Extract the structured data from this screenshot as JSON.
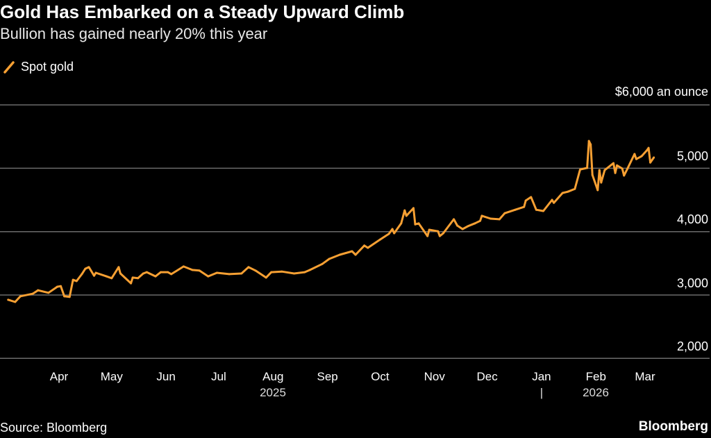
{
  "title": "Gold Has Embarked on a Steady Upward Climb",
  "subtitle": "Bullion has gained nearly 20% this year",
  "source": "Source: Bloomberg",
  "brand": "Bloomberg",
  "colors": {
    "series": "#f7a033",
    "grid": "#6b6b6b",
    "background": "#000000"
  },
  "chart_data": {
    "type": "line",
    "title": "Gold Has Embarked on a Steady Upward Climb",
    "subtitle": "Bullion has gained nearly 20% this year",
    "legend": "top-left",
    "grid": true,
    "y_unit_label": "$6,000 an ounce",
    "ylim": [
      2000,
      6000
    ],
    "y_ticks": [
      "$6,000 an ounce",
      "5,000",
      "4,000",
      "3,000",
      "2,000"
    ],
    "x_ticks": [
      "Apr",
      "May",
      "Jun",
      "Jul",
      "Aug",
      "Sep",
      "Oct",
      "Nov",
      "Dec",
      "Jan",
      "Feb",
      "Mar"
    ],
    "x_year_labels": [
      "2025",
      "2026"
    ],
    "year_divider": "|",
    "series": [
      {
        "name": "Spot gold",
        "points": [
          [
            "2025-03-03",
            2925
          ],
          [
            "2025-03-07",
            2890
          ],
          [
            "2025-03-10",
            2980
          ],
          [
            "2025-03-17",
            3020
          ],
          [
            "2025-03-20",
            3075
          ],
          [
            "2025-03-26",
            3035
          ],
          [
            "2025-03-31",
            3130
          ],
          [
            "2025-04-02",
            3140
          ],
          [
            "2025-04-04",
            2980
          ],
          [
            "2025-04-07",
            2970
          ],
          [
            "2025-04-09",
            3240
          ],
          [
            "2025-04-11",
            3220
          ],
          [
            "2025-04-14",
            3330
          ],
          [
            "2025-04-16",
            3415
          ],
          [
            "2025-04-18",
            3440
          ],
          [
            "2025-04-21",
            3305
          ],
          [
            "2025-04-22",
            3350
          ],
          [
            "2025-04-28",
            3295
          ],
          [
            "2025-05-01",
            3265
          ],
          [
            "2025-05-05",
            3440
          ],
          [
            "2025-05-06",
            3340
          ],
          [
            "2025-05-12",
            3185
          ],
          [
            "2025-05-13",
            3275
          ],
          [
            "2025-05-16",
            3265
          ],
          [
            "2025-05-19",
            3340
          ],
          [
            "2025-05-21",
            3360
          ],
          [
            "2025-05-26",
            3295
          ],
          [
            "2025-05-29",
            3360
          ],
          [
            "2025-06-02",
            3360
          ],
          [
            "2025-06-04",
            3330
          ],
          [
            "2025-06-11",
            3450
          ],
          [
            "2025-06-16",
            3395
          ],
          [
            "2025-06-20",
            3385
          ],
          [
            "2025-06-25",
            3295
          ],
          [
            "2025-06-30",
            3350
          ],
          [
            "2025-07-07",
            3330
          ],
          [
            "2025-07-14",
            3340
          ],
          [
            "2025-07-18",
            3440
          ],
          [
            "2025-07-22",
            3385
          ],
          [
            "2025-07-28",
            3275
          ],
          [
            "2025-07-31",
            3360
          ],
          [
            "2025-08-06",
            3370
          ],
          [
            "2025-08-13",
            3340
          ],
          [
            "2025-08-19",
            3360
          ],
          [
            "2025-08-22",
            3395
          ],
          [
            "2025-08-29",
            3490
          ],
          [
            "2025-09-02",
            3570
          ],
          [
            "2025-09-08",
            3635
          ],
          [
            "2025-09-15",
            3690
          ],
          [
            "2025-09-17",
            3635
          ],
          [
            "2025-09-22",
            3780
          ],
          [
            "2025-09-24",
            3745
          ],
          [
            "2025-10-01",
            3875
          ],
          [
            "2025-10-06",
            3965
          ],
          [
            "2025-10-08",
            4040
          ],
          [
            "2025-10-09",
            3975
          ],
          [
            "2025-10-13",
            4130
          ],
          [
            "2025-10-15",
            4335
          ],
          [
            "2025-10-16",
            4250
          ],
          [
            "2025-10-20",
            4370
          ],
          [
            "2025-10-21",
            4115
          ],
          [
            "2025-10-23",
            4130
          ],
          [
            "2025-10-28",
            3930
          ],
          [
            "2025-10-29",
            4030
          ],
          [
            "2025-11-03",
            4005
          ],
          [
            "2025-11-04",
            3930
          ],
          [
            "2025-11-06",
            3975
          ],
          [
            "2025-11-12",
            4195
          ],
          [
            "2025-11-14",
            4095
          ],
          [
            "2025-11-17",
            4040
          ],
          [
            "2025-11-20",
            4085
          ],
          [
            "2025-11-24",
            4130
          ],
          [
            "2025-11-27",
            4170
          ],
          [
            "2025-11-28",
            4250
          ],
          [
            "2025-12-03",
            4205
          ],
          [
            "2025-12-08",
            4195
          ],
          [
            "2025-12-11",
            4290
          ],
          [
            "2025-12-17",
            4345
          ],
          [
            "2025-12-22",
            4390
          ],
          [
            "2025-12-23",
            4490
          ],
          [
            "2025-12-26",
            4545
          ],
          [
            "2025-12-29",
            4345
          ],
          [
            "2026-01-02",
            4325
          ],
          [
            "2026-01-07",
            4500
          ],
          [
            "2026-01-08",
            4455
          ],
          [
            "2026-01-13",
            4610
          ],
          [
            "2026-01-16",
            4630
          ],
          [
            "2026-01-20",
            4675
          ],
          [
            "2026-01-23",
            4980
          ],
          [
            "2026-01-27",
            5005
          ],
          [
            "2026-01-28",
            5430
          ],
          [
            "2026-01-29",
            5375
          ],
          [
            "2026-01-30",
            4895
          ],
          [
            "2026-02-02",
            4655
          ],
          [
            "2026-02-03",
            4970
          ],
          [
            "2026-02-04",
            4775
          ],
          [
            "2026-02-06",
            4970
          ],
          [
            "2026-02-11",
            5080
          ],
          [
            "2026-02-12",
            4925
          ],
          [
            "2026-02-13",
            5045
          ],
          [
            "2026-02-16",
            4995
          ],
          [
            "2026-02-17",
            4885
          ],
          [
            "2026-02-19",
            4995
          ],
          [
            "2026-02-23",
            5225
          ],
          [
            "2026-02-24",
            5145
          ],
          [
            "2026-02-27",
            5190
          ],
          [
            "2026-03-02",
            5280
          ],
          [
            "2026-03-03",
            5320
          ],
          [
            "2026-03-04",
            5090
          ],
          [
            "2026-03-06",
            5170
          ]
        ]
      }
    ]
  }
}
